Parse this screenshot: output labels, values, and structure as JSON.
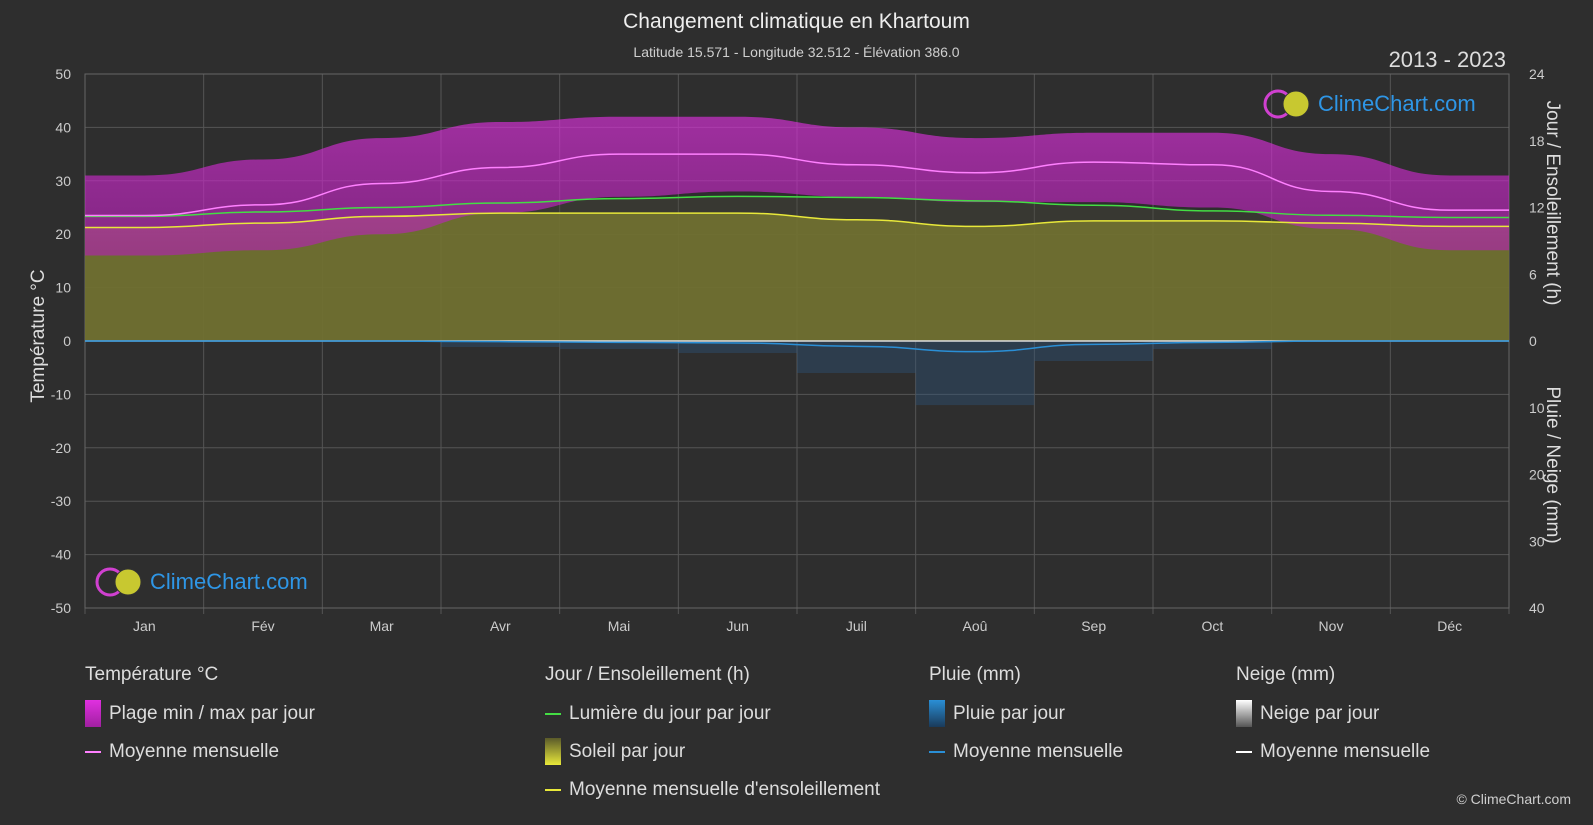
{
  "header": {
    "title": "Changement climatique en Khartoum",
    "subtitle": "Latitude 15.571 - Longitude 32.512 - Élévation 386.0",
    "years": "2013 - 2023"
  },
  "axes": {
    "left_label": "Température °C",
    "right_top_label": "Jour / Ensoleillement (h)",
    "right_bottom_label": "Pluie / Neige (mm)"
  },
  "logo": {
    "text": "ClimeChart.com"
  },
  "copyright": "© ClimeChart.com",
  "legend": {
    "temperature": {
      "title": "Température °C",
      "range": "Plage min / max par jour",
      "mean": "Moyenne mensuelle"
    },
    "sun": {
      "title": "Jour / Ensoleillement (h)",
      "daylight": "Lumière du jour par jour",
      "sunshine": "Soleil par jour",
      "sun_mean": "Moyenne mensuelle d'ensoleillement"
    },
    "rain": {
      "title": "Pluie (mm)",
      "rain_day": "Pluie par jour",
      "mean": "Moyenne mensuelle"
    },
    "snow": {
      "title": "Neige (mm)",
      "snow_day": "Neige par jour",
      "mean": "Moyenne mensuelle"
    }
  },
  "colors": {
    "temp_range": "#d020d0",
    "temp_mean": "#ff80ff",
    "daylight": "#44dd44",
    "sunshine_fill": "#9b9b2a",
    "sunshine_mean": "#e8e83a",
    "rain": "#2a8fd6",
    "snow": "#ffffff"
  },
  "chart_data": {
    "type": "area",
    "months": [
      "Jan",
      "Fév",
      "Mar",
      "Avr",
      "Mai",
      "Jun",
      "Juil",
      "Aoû",
      "Sep",
      "Oct",
      "Nov",
      "Déc"
    ],
    "left_axis": {
      "label": "Température °C",
      "ticks": [
        50,
        40,
        30,
        20,
        10,
        0,
        -10,
        -20,
        -30,
        -40,
        -50
      ],
      "ylim": [
        -50,
        50
      ]
    },
    "right_axis_top": {
      "label": "Jour / Ensoleillement (h)",
      "ticks": [
        24,
        18,
        12,
        6,
        0
      ],
      "ylim": [
        0,
        24
      ]
    },
    "right_axis_bottom": {
      "label": "Pluie / Neige (mm)",
      "ticks": [
        0,
        10,
        20,
        30,
        40
      ],
      "ylim": [
        0,
        40
      ]
    },
    "grid": true,
    "series": [
      {
        "name": "Plage min / max par jour",
        "unit": "°C",
        "min": [
          16,
          17,
          20,
          24,
          27,
          28,
          27,
          26,
          26,
          25,
          21,
          17
        ],
        "max": [
          31,
          34,
          38,
          41,
          42,
          42,
          40,
          38,
          39,
          39,
          35,
          31
        ]
      },
      {
        "name": "Moyenne mensuelle",
        "unit": "°C",
        "values": [
          23.5,
          25.5,
          29.5,
          32.5,
          35,
          35,
          33,
          31.5,
          33.5,
          33,
          28,
          24.5
        ]
      },
      {
        "name": "Lumière du jour par jour",
        "unit": "h",
        "values": [
          11.2,
          11.6,
          12.0,
          12.4,
          12.8,
          13.0,
          12.9,
          12.6,
          12.2,
          11.7,
          11.3,
          11.1
        ]
      },
      {
        "name": "Soleil par jour",
        "unit": "h",
        "values": [
          10.2,
          10.6,
          11.2,
          11.5,
          11.5,
          11.5,
          10.9,
          10.3,
          10.8,
          10.8,
          10.6,
          10.3
        ]
      },
      {
        "name": "Moyenne mensuelle d'ensoleillement",
        "unit": "h",
        "values": [
          10.2,
          10.6,
          11.2,
          11.5,
          11.5,
          11.5,
          10.9,
          10.3,
          10.8,
          10.8,
          10.6,
          10.3
        ]
      },
      {
        "name": "Pluie par jour",
        "unit": "mm",
        "values": [
          0,
          0,
          0,
          0.1,
          0.2,
          0.3,
          0.8,
          1.6,
          0.5,
          0.2,
          0,
          0
        ]
      },
      {
        "name": "Moyenne mensuelle",
        "unit": "mm",
        "values": [
          0,
          0,
          0,
          0.1,
          0.2,
          0.3,
          0.8,
          1.6,
          0.5,
          0.2,
          0,
          0
        ]
      }
    ]
  }
}
